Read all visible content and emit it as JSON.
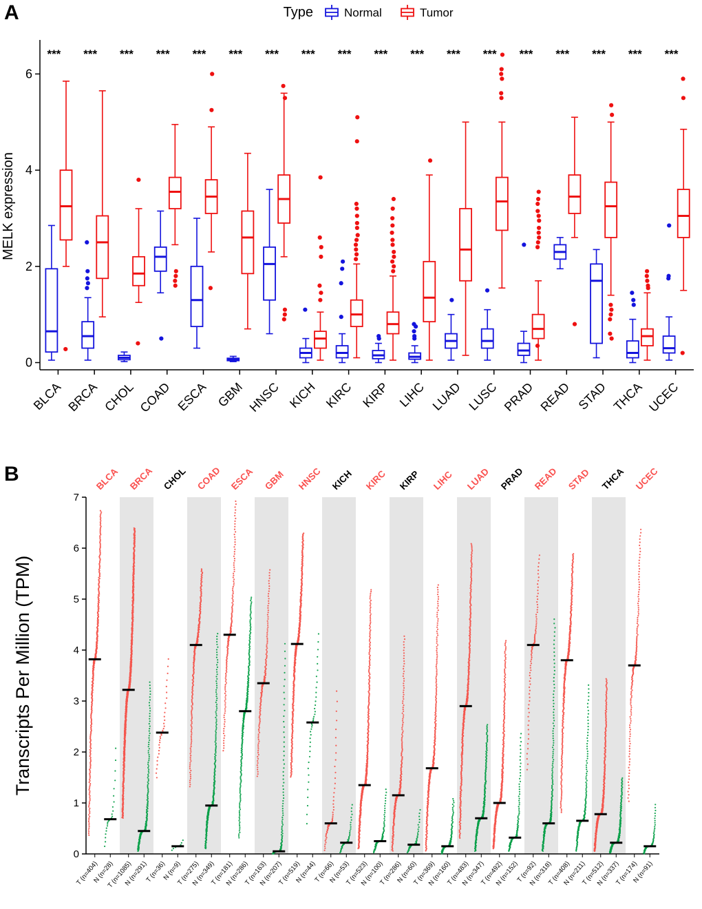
{
  "chart_data": {
    "type": "boxplot_and_dotstrip_figure",
    "panelA": {
      "label": "A",
      "type": "bar",
      "legend": {
        "title": "Type",
        "normal": "Normal",
        "tumor": "Tumor"
      },
      "ylabel": "MELK expression",
      "yticks": [
        0,
        2,
        4,
        6
      ],
      "ylim": [
        -0.15,
        6.65
      ],
      "significance": "***",
      "colors": {
        "normal": "#1414DD",
        "tumor": "#EE1111"
      },
      "boxes": [
        {
          "cancer": "BLCA",
          "normal": {
            "w": [
              0.05,
              0.22,
              0.65,
              1.95,
              2.85
            ],
            "out": []
          },
          "tumor": {
            "w": [
              2.0,
              2.55,
              3.25,
              4.0,
              5.85
            ],
            "out": [
              0.28
            ]
          }
        },
        {
          "cancer": "BRCA",
          "normal": {
            "w": [
              0.05,
              0.3,
              0.55,
              0.85,
              1.35
            ],
            "out": [
              1.55,
              1.65,
              1.75,
              1.9,
              2.5
            ]
          },
          "tumor": {
            "w": [
              0.95,
              1.75,
              2.5,
              3.05,
              5.65
            ],
            "out": []
          }
        },
        {
          "cancer": "CHOL",
          "normal": {
            "w": [
              0.02,
              0.06,
              0.1,
              0.15,
              0.22
            ],
            "out": []
          },
          "tumor": {
            "w": [
              1.25,
              1.6,
              1.85,
              2.2,
              3.2
            ],
            "out": [
              3.8,
              0.4
            ]
          }
        },
        {
          "cancer": "COAD",
          "normal": {
            "w": [
              1.45,
              1.9,
              2.2,
              2.4,
              3.15
            ],
            "out": [
              0.5
            ]
          },
          "tumor": {
            "w": [
              2.45,
              3.2,
              3.55,
              3.85,
              4.95
            ],
            "out": [
              1.9,
              1.8,
              1.7,
              1.6
            ]
          }
        },
        {
          "cancer": "ESCA",
          "normal": {
            "w": [
              0.3,
              0.75,
              1.3,
              2.0,
              3.0
            ],
            "out": []
          },
          "tumor": {
            "w": [
              2.3,
              3.1,
              3.45,
              3.8,
              4.9
            ],
            "out": [
              6.0,
              5.25,
              1.55
            ]
          }
        },
        {
          "cancer": "GBM",
          "normal": {
            "w": [
              0.02,
              0.04,
              0.06,
              0.09,
              0.13
            ],
            "out": []
          },
          "tumor": {
            "w": [
              0.7,
              1.85,
              2.6,
              3.15,
              4.35
            ],
            "out": []
          }
        },
        {
          "cancer": "HNSC",
          "normal": {
            "w": [
              0.6,
              1.3,
              2.05,
              2.4,
              3.6
            ],
            "out": []
          },
          "tumor": {
            "w": [
              2.2,
              2.9,
              3.4,
              3.9,
              5.6
            ],
            "out": [
              5.75,
              5.5,
              1.1,
              1.0,
              0.9
            ]
          }
        },
        {
          "cancer": "KICH",
          "normal": {
            "w": [
              0.0,
              0.1,
              0.2,
              0.3,
              0.5
            ],
            "out": [
              1.1
            ]
          },
          "tumor": {
            "w": [
              0.05,
              0.3,
              0.5,
              0.65,
              1.05
            ],
            "out": [
              3.85,
              2.6,
              2.4,
              2.2,
              1.6,
              1.45,
              1.3
            ]
          }
        },
        {
          "cancer": "KIRC",
          "normal": {
            "w": [
              0.0,
              0.1,
              0.2,
              0.35,
              0.6
            ],
            "out": [
              0.95,
              1.65,
              1.95,
              2.1
            ]
          },
          "tumor": {
            "w": [
              0.1,
              0.75,
              1.0,
              1.3,
              2.05
            ],
            "out": [
              5.1,
              4.6,
              3.3,
              3.2,
              3.05,
              2.9,
              2.8,
              2.65,
              2.55,
              2.45,
              2.35,
              2.25,
              2.15
            ]
          }
        },
        {
          "cancer": "KIRP",
          "normal": {
            "w": [
              0.0,
              0.08,
              0.15,
              0.25,
              0.4
            ],
            "out": [
              0.5,
              0.55
            ]
          },
          "tumor": {
            "w": [
              0.05,
              0.6,
              0.8,
              1.05,
              1.8
            ],
            "out": [
              3.4,
              3.2,
              3.0,
              2.85,
              2.7,
              2.55,
              2.45,
              2.3,
              2.2,
              2.1,
              2.0,
              1.9
            ]
          }
        },
        {
          "cancer": "LIHC",
          "normal": {
            "w": [
              0.0,
              0.07,
              0.12,
              0.2,
              0.35
            ],
            "out": [
              0.5,
              0.55,
              0.65,
              0.75,
              0.8
            ]
          },
          "tumor": {
            "w": [
              0.05,
              0.85,
              1.35,
              2.1,
              3.9
            ],
            "out": [
              4.2
            ]
          }
        },
        {
          "cancer": "LUAD",
          "normal": {
            "w": [
              0.05,
              0.3,
              0.45,
              0.6,
              1.0
            ],
            "out": [
              1.3
            ]
          },
          "tumor": {
            "w": [
              0.15,
              1.7,
              2.35,
              3.2,
              5.0
            ],
            "out": []
          }
        },
        {
          "cancer": "LUSC",
          "normal": {
            "w": [
              0.05,
              0.3,
              0.45,
              0.7,
              1.1
            ],
            "out": [
              1.5
            ]
          },
          "tumor": {
            "w": [
              1.55,
              2.75,
              3.35,
              3.85,
              5.0
            ],
            "out": [
              6.4,
              6.1,
              6.0,
              5.9,
              5.6,
              5.5
            ]
          }
        },
        {
          "cancer": "PRAD",
          "normal": {
            "w": [
              0.0,
              0.15,
              0.25,
              0.4,
              0.65
            ],
            "out": [
              2.45
            ]
          },
          "tumor": {
            "w": [
              0.05,
              0.5,
              0.7,
              1.0,
              1.7
            ],
            "out": [
              3.55,
              3.4,
              3.3,
              3.15,
              3.05,
              2.95,
              2.8,
              2.7,
              2.6,
              2.5,
              2.4,
              0.35
            ]
          }
        },
        {
          "cancer": "READ",
          "normal": {
            "w": [
              1.95,
              2.15,
              2.3,
              2.45,
              2.6
            ],
            "out": []
          },
          "tumor": {
            "w": [
              2.6,
              3.1,
              3.45,
              3.9,
              5.1
            ],
            "out": [
              0.8
            ]
          }
        },
        {
          "cancer": "STAD",
          "normal": {
            "w": [
              0.1,
              0.4,
              1.7,
              2.05,
              2.35
            ],
            "out": []
          },
          "tumor": {
            "w": [
              1.4,
              2.6,
              3.25,
              3.75,
              5.0
            ],
            "out": [
              5.35,
              5.15,
              1.2,
              1.1,
              1.0,
              0.9,
              0.6,
              0.5
            ]
          }
        },
        {
          "cancer": "THCA",
          "normal": {
            "w": [
              0.0,
              0.1,
              0.2,
              0.45,
              0.9
            ],
            "out": [
              1.2,
              1.3,
              1.45
            ]
          },
          "tumor": {
            "w": [
              0.05,
              0.35,
              0.55,
              0.7,
              1.45
            ],
            "out": [
              1.9,
              1.8,
              1.7,
              1.6,
              1.55
            ]
          }
        },
        {
          "cancer": "UCEC",
          "normal": {
            "w": [
              0.05,
              0.2,
              0.3,
              0.55,
              0.95
            ],
            "out": [
              1.75,
              1.8,
              2.85
            ]
          },
          "tumor": {
            "w": [
              1.5,
              2.6,
              3.05,
              3.6,
              4.85
            ],
            "out": [
              5.9,
              5.5,
              0.2
            ]
          }
        }
      ]
    },
    "panelB": {
      "label": "B",
      "type": "scatter",
      "ylabel": "Transcripts Per Million (TPM)",
      "yticks": [
        0,
        1,
        2,
        3,
        4,
        5,
        6,
        7
      ],
      "ylim": [
        0,
        7
      ],
      "colors": {
        "tumor_dot": "#F4564E",
        "normal_dot": "#0BA04A",
        "median_bar": "#000000",
        "red_label": "#FA5250",
        "black_label": "#000000",
        "band": "#E5E5E5"
      },
      "groups": [
        {
          "cancer": "BLCA",
          "red": true,
          "tumor": {
            "label": "T (n=404)",
            "count": 404,
            "med": 3.82,
            "min": 0.35,
            "max": 6.75,
            "k": 2.0
          },
          "normal": {
            "label": "N (n=28)",
            "count": 28,
            "med": 0.68,
            "min": 0.1,
            "max": 2.2,
            "k": 2.4
          }
        },
        {
          "cancer": "BRCA",
          "red": true,
          "tumor": {
            "label": "T (n=1085)",
            "count": 1085,
            "med": 3.22,
            "min": 0.7,
            "max": 6.4,
            "k": 2.0
          },
          "normal": {
            "label": "N (n=291)",
            "count": 291,
            "med": 0.45,
            "min": 0.05,
            "max": 3.4,
            "k": 3.0
          }
        },
        {
          "cancer": "CHOL",
          "red": false,
          "tumor": {
            "label": "T (n=36)",
            "count": 36,
            "med": 2.38,
            "min": 1.45,
            "max": 3.9,
            "k": 1.8
          },
          "normal": {
            "label": "N (n=9)",
            "count": 9,
            "med": 0.15,
            "min": 0.05,
            "max": 0.3,
            "k": 2.0
          }
        },
        {
          "cancer": "COAD",
          "red": true,
          "tumor": {
            "label": "T (n=275)",
            "count": 275,
            "med": 4.1,
            "min": 1.3,
            "max": 5.6,
            "k": 2.0
          },
          "normal": {
            "label": "N (n=349)",
            "count": 349,
            "med": 0.95,
            "min": 0.1,
            "max": 4.35,
            "k": 2.8
          }
        },
        {
          "cancer": "ESCA",
          "red": true,
          "tumor": {
            "label": "T (n=181)",
            "count": 181,
            "med": 4.3,
            "min": 2.0,
            "max": 6.95,
            "k": 2.0
          },
          "normal": {
            "label": "N (n=286)",
            "count": 286,
            "med": 2.8,
            "min": 0.3,
            "max": 5.05,
            "k": 2.0
          }
        },
        {
          "cancer": "GBM",
          "red": true,
          "tumor": {
            "label": "T (n=163)",
            "count": 163,
            "med": 3.35,
            "min": 1.5,
            "max": 5.6,
            "k": 2.0
          },
          "normal": {
            "label": "N (n=207)",
            "count": 207,
            "med": 0.05,
            "min": 0.0,
            "max": 4.2,
            "k": 3.8
          }
        },
        {
          "cancer": "HNSC",
          "red": true,
          "tumor": {
            "label": "T (n=519)",
            "count": 519,
            "med": 4.12,
            "min": 1.5,
            "max": 6.3,
            "k": 2.0
          },
          "normal": {
            "label": "N (n=44)",
            "count": 44,
            "med": 2.58,
            "min": 0.5,
            "max": 4.4,
            "k": 2.0
          }
        },
        {
          "cancer": "KICH",
          "red": false,
          "tumor": {
            "label": "T (n=66)",
            "count": 66,
            "med": 0.6,
            "min": 0.05,
            "max": 3.3,
            "k": 2.6
          },
          "normal": {
            "label": "N (n=53)",
            "count": 53,
            "med": 0.22,
            "min": 0.02,
            "max": 1.0,
            "k": 2.4
          }
        },
        {
          "cancer": "KIRC",
          "red": true,
          "tumor": {
            "label": "T (n=523)",
            "count": 523,
            "med": 1.35,
            "min": 0.1,
            "max": 5.2,
            "k": 2.4
          },
          "normal": {
            "label": "N (n=100)",
            "count": 100,
            "med": 0.25,
            "min": 0.02,
            "max": 1.3,
            "k": 3.0
          }
        },
        {
          "cancer": "KIRP",
          "red": false,
          "tumor": {
            "label": "T (n=286)",
            "count": 286,
            "med": 1.15,
            "min": 0.05,
            "max": 4.3,
            "k": 2.6
          },
          "normal": {
            "label": "N (n=60)",
            "count": 60,
            "med": 0.18,
            "min": 0.02,
            "max": 0.9,
            "k": 3.0
          }
        },
        {
          "cancer": "LIHC",
          "red": true,
          "tumor": {
            "label": "T (n=369)",
            "count": 369,
            "med": 1.68,
            "min": 0.05,
            "max": 5.3,
            "k": 2.4
          },
          "normal": {
            "label": "N (n=160)",
            "count": 160,
            "med": 0.15,
            "min": 0.0,
            "max": 1.1,
            "k": 3.2
          }
        },
        {
          "cancer": "LUAD",
          "red": true,
          "tumor": {
            "label": "T (n=483)",
            "count": 483,
            "med": 2.9,
            "min": 0.3,
            "max": 6.1,
            "k": 2.1
          },
          "normal": {
            "label": "N (n=347)",
            "count": 347,
            "med": 0.7,
            "min": 0.05,
            "max": 2.55,
            "k": 2.6
          }
        },
        {
          "cancer": "PRAD",
          "red": false,
          "tumor": {
            "label": "T (n=492)",
            "count": 492,
            "med": 1.0,
            "min": 0.1,
            "max": 4.2,
            "k": 2.4
          },
          "normal": {
            "label": "N (n=152)",
            "count": 152,
            "med": 0.32,
            "min": 0.05,
            "max": 2.4,
            "k": 3.0
          }
        },
        {
          "cancer": "READ",
          "red": true,
          "tumor": {
            "label": "T (n=92)",
            "count": 92,
            "med": 4.1,
            "min": 1.6,
            "max": 5.9,
            "k": 2.0
          },
          "normal": {
            "label": "N (n=318)",
            "count": 318,
            "med": 0.6,
            "min": 0.05,
            "max": 4.65,
            "k": 3.4
          }
        },
        {
          "cancer": "STAD",
          "red": true,
          "tumor": {
            "label": "T (n=408)",
            "count": 408,
            "med": 3.8,
            "min": 0.8,
            "max": 5.9,
            "k": 2.1
          },
          "normal": {
            "label": "N (n=211)",
            "count": 211,
            "med": 0.65,
            "min": 0.05,
            "max": 3.35,
            "k": 3.0
          }
        },
        {
          "cancer": "THCA",
          "red": false,
          "tumor": {
            "label": "T (n=512)",
            "count": 512,
            "med": 0.78,
            "min": 0.05,
            "max": 3.45,
            "k": 2.6
          },
          "normal": {
            "label": "N (n=337)",
            "count": 337,
            "med": 0.22,
            "min": 0.02,
            "max": 1.5,
            "k": 3.2
          }
        },
        {
          "cancer": "UCEC",
          "red": true,
          "tumor": {
            "label": "T (n=174)",
            "count": 174,
            "med": 3.7,
            "min": 1.0,
            "max": 6.4,
            "k": 2.1
          },
          "normal": {
            "label": "N (n=91)",
            "count": 91,
            "med": 0.15,
            "min": 0.0,
            "max": 1.0,
            "k": 3.4
          }
        }
      ]
    }
  }
}
